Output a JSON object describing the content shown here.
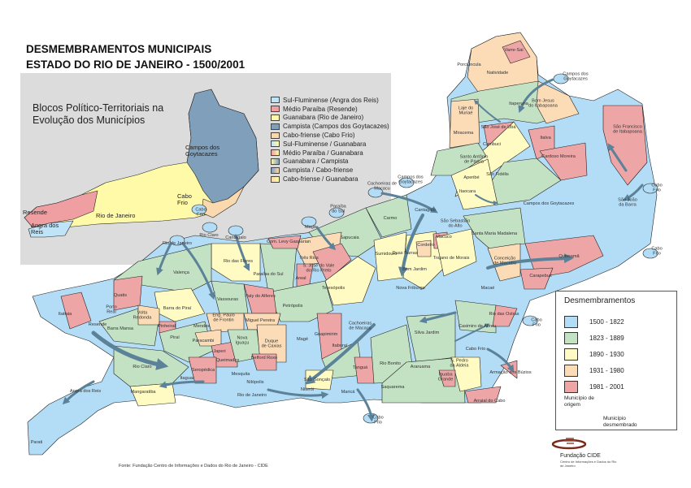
{
  "title": {
    "line1": "DESMEMBRAMENTOS MUNICIPAIS",
    "line2": "ESTADO DO RIO DE JANEIRO - 1500/2001"
  },
  "inset": {
    "title": "Blocos Político-Territoriais na Evolução dos Municípios",
    "labels": [
      "Campos dos\nGoytacazes",
      "Resende",
      "Angra dos\nReis",
      "Rio de Janeiro",
      "Cabo\nFrio"
    ],
    "legend": [
      {
        "label": "Sul-Fluminense (Angra dos Reis)",
        "color": "#bfe3f7"
      },
      {
        "label": "Médio Paraíba (Resende)",
        "color": "#ef9fa2"
      },
      {
        "label": "Guanabara (Rio de Janeiro)",
        "color": "#fffaa8"
      },
      {
        "label": "Campista (Campos dos Goytacazes)",
        "color": "#7f9fbb"
      },
      {
        "label": "Cabo-friense (Cabo Frio)",
        "color": "#fbd9ae"
      },
      {
        "label": "Sul-Fluminense / Guanabara",
        "color": "#bfe3f7",
        "color2": "#fffaa8"
      },
      {
        "label": "Médio Paraíba / Guanabara",
        "color": "#ef9fa2",
        "color2": "#fffaa8"
      },
      {
        "label": "Guanabara / Campista",
        "color": "#fffaa8",
        "color2": "#7f9fbb"
      },
      {
        "label": "Campista / Cabo-friense",
        "color": "#7f9fbb",
        "color2": "#fbd9ae"
      },
      {
        "label": "Cabo-friense / Guanabara",
        "color": "#fbd9ae",
        "color2": "#fffaa8"
      }
    ]
  },
  "legend": {
    "title": "Desmembramentos",
    "items": [
      {
        "label": "1500 - 1822",
        "color": "#b3dcf6"
      },
      {
        "label": "1823 - 1889",
        "color": "#c3e2c3"
      },
      {
        "label": "1890 - 1930",
        "color": "#fffbc2"
      },
      {
        "label": "1931 - 1980",
        "color": "#fbdcb6"
      },
      {
        "label": "1981 - 2001",
        "color": "#eea5a6"
      }
    ],
    "origin_label": "Município de\norigem",
    "dest_label": "Município\ndesmembrado",
    "arrow_color": "#5b8299"
  },
  "municipalities": [
    "Varre-Sai",
    "Porciúncula",
    "Natividade",
    "Itaperuna",
    "Bom Jesus\ndo Itabapoana",
    "Laje do\nMuriaé",
    "Miracema",
    "São José de Ubá",
    "Italva",
    "São Francisco\nde Itabapoana",
    "Cambuci",
    "Cardoso Moreira",
    "Santo Antônio\nde Pádua",
    "São Fidélis",
    "Aperibé",
    "Itaocara",
    "Campos dos Goytacazes",
    "São João\nda Barra",
    "Cantagalo",
    "Carmo",
    "São Sebastião\ndo Alto",
    "Santa Maria Madalena",
    "Sapucaia",
    "Sumidouro",
    "Duas Barras",
    "Cordeiro",
    "Macuco",
    "Bom Jardim",
    "Trajano de Morais",
    "Conceição\nde Macabu",
    "Quissamã",
    "Carapebus",
    "Macaé",
    "Nova Friburgo",
    "Rio das Flores",
    "Paraíba do Sul",
    "Três Rios",
    "Com. Levy Gasparian",
    "Areal",
    "S. José do Vale\ndo Rio Preto",
    "Teresópolis",
    "Paty do Alferes",
    "Vassouras",
    "Petrópolis",
    "Valença",
    "Quatis",
    "Porto\nReal",
    "Itatiaia",
    "Resende",
    "Barra Mansa",
    "Volta\nRedonda",
    "Pinheiral",
    "Barra do Piraí",
    "Piraí",
    "Eng. Paulo\nde Frontin",
    "Mendes",
    "Miguel Pereira",
    "Paracambi",
    "Japeri",
    "Queimados",
    "Seropédica",
    "Nova\nIguaçu",
    "Duque\nde Caxias",
    "Belford Roxo",
    "Mesquita",
    "Nilópolis",
    "Magé",
    "Guapimirim",
    "Cachoeiras\nde Macacu",
    "Silva Jardim",
    "Casimiro de Abreu",
    "Rio das Ostras",
    "Rio Claro",
    "Itaguaí",
    "Mangaratiba",
    "Angra dos Reis",
    "Parati",
    "Rio de Janeiro",
    "Itaboraí",
    "Tanguá",
    "Rio Bonito",
    "Araruama",
    "Cabo Frio",
    "S. Pedro\nda Aldeia",
    "Iguaba\nGrande",
    "Armação dos Búzios",
    "Arraial do Cabo",
    "Saquarema",
    "São Gonçalo",
    "Niterói",
    "Maricá"
  ],
  "origin_labels": [
    "Cabo\nFrio",
    "Rio Claro",
    "Rio de Janeiro",
    "Cantagalo",
    "Magé",
    "Paraíba\ndo Sul",
    "Cachoeiras de\nMacacu",
    "Campos dos\nGoytacazes",
    "Campos dos\nGoytacazes",
    "Cabo\nFrio",
    "Cabo\nFrio",
    "Cabo\nFrio",
    "Cabo\nFrio"
  ],
  "source": "Fonte: Fundação Centro de Informações e Dados do Rio de Janeiro - CIDE",
  "logo": {
    "name": "Fundação CIDE",
    "subtitle": "Centro de Informações e Dados do Rio de Janeiro"
  }
}
